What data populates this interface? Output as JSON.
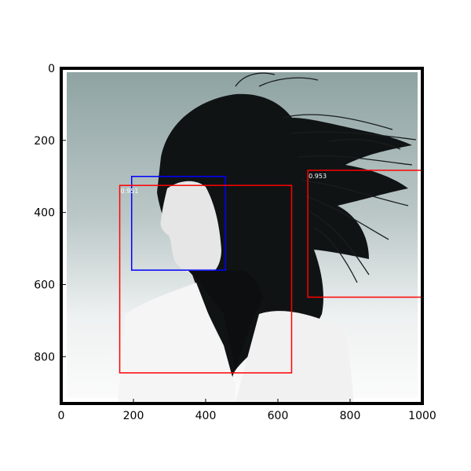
{
  "chart_data": {
    "type": "image-with-bounding-boxes",
    "image_description_icon": "photo-woman-windblown-hair",
    "xlim": [
      0,
      1000
    ],
    "ylim": [
      0,
      930
    ],
    "y_inverted": true,
    "x_ticks": [
      "0",
      "200",
      "400",
      "600",
      "800",
      "1000"
    ],
    "x_tick_values": [
      0,
      200,
      400,
      600,
      800,
      1000
    ],
    "y_ticks": [
      "0",
      "200",
      "400",
      "600",
      "800"
    ],
    "y_tick_values": [
      0,
      200,
      400,
      600,
      800
    ],
    "boxes": [
      {
        "name": "detection-box-face",
        "color": "#0000ff",
        "x0": 195,
        "y0": 300,
        "x1": 455,
        "y1": 560,
        "score": ""
      },
      {
        "name": "detection-box-person",
        "color": "#ff0000",
        "x0": 162,
        "y0": 325,
        "x1": 638,
        "y1": 845,
        "score": "0.951"
      },
      {
        "name": "detection-box-hair",
        "color": "#ff0000",
        "x0": 683,
        "y0": 283,
        "x1": 1000,
        "y1": 635,
        "score": "0.953"
      }
    ]
  }
}
